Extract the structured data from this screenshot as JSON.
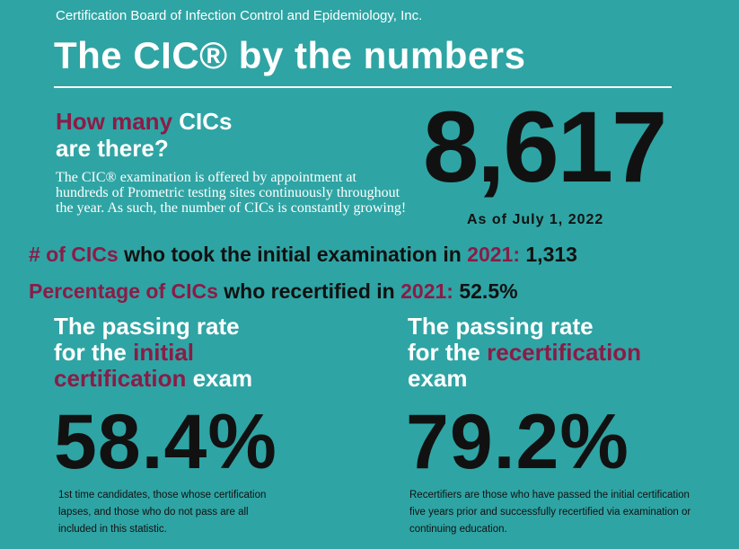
{
  "org": "Certification Board of Infection Control and Epidemiology, Inc.",
  "title": "The CIC® by the numbers",
  "how_many": {
    "head_part1": "How many",
    "head_part2": " CICs",
    "head_line2": "are there?",
    "body": "The CIC® examination is offered by appointment at hundreds of Prometric testing sites continuously throughout the year. As such, the number of CICs is constantly growing!",
    "count": "8,617",
    "as_of": "As of July 1, 2022"
  },
  "stat1": {
    "label": "# of CICs",
    "mid": " who took the initial examination in ",
    "year": "2021:",
    "value": " 1,313"
  },
  "stat2": {
    "label": "Percentage of CICs",
    "mid": " who recertified in ",
    "year": "2021:",
    "value": " 52.5%"
  },
  "pass_initial": {
    "line1": "The passing rate",
    "line2a": "for the ",
    "line2b": "initial",
    "line3a": "certification",
    "line3b": " exam",
    "percent": "58.4%",
    "note": "1st time candidates, those whose certification lapses, and those who do not pass are all included in this statistic."
  },
  "pass_recert": {
    "line1": "The passing rate",
    "line2a": "for the ",
    "line2b": "recertification",
    "line3": "exam",
    "percent": "79.2%",
    "note": "Recertifiers are those who have passed the initial certification five years prior and successfully recertified via examination or continuing education."
  },
  "colors": {
    "background": "#2fa4a4",
    "accent": "#8a1c47",
    "text_dark": "#111111"
  }
}
